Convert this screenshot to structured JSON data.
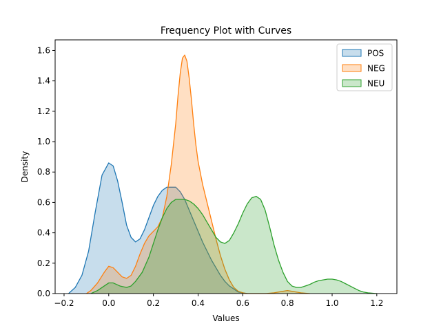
{
  "chart_data": {
    "type": "area",
    "title": "Frequency Plot with Curves",
    "xlabel": "Values",
    "ylabel": "Density",
    "xlim": [
      -0.24,
      1.29
    ],
    "ylim": [
      0,
      1.67
    ],
    "xticks": [
      -0.2,
      0.0,
      0.2,
      0.4,
      0.6,
      0.8,
      1.0,
      1.2
    ],
    "xtick_labels": [
      "−0.2",
      "0.0",
      "0.2",
      "0.4",
      "0.6",
      "0.8",
      "1.0",
      "1.2"
    ],
    "yticks": [
      0.0,
      0.2,
      0.4,
      0.6,
      0.8,
      1.0,
      1.2,
      1.4,
      1.6
    ],
    "ytick_labels": [
      "0.0",
      "0.2",
      "0.4",
      "0.6",
      "0.8",
      "1.0",
      "1.2",
      "1.4",
      "1.6"
    ],
    "grid": false,
    "legend_position": "top-right",
    "series": [
      {
        "name": "POS",
        "color": "#1f77b4",
        "x": [
          -0.18,
          -0.15,
          -0.12,
          -0.09,
          -0.06,
          -0.03,
          0.0,
          0.02,
          0.04,
          0.06,
          0.08,
          0.1,
          0.12,
          0.14,
          0.16,
          0.18,
          0.2,
          0.22,
          0.24,
          0.26,
          0.28,
          0.3,
          0.32,
          0.34,
          0.36,
          0.38,
          0.4,
          0.42,
          0.44,
          0.46,
          0.48,
          0.5,
          0.52,
          0.54,
          0.56,
          0.58,
          0.6,
          0.62
        ],
        "y": [
          0.0,
          0.04,
          0.12,
          0.28,
          0.54,
          0.78,
          0.86,
          0.84,
          0.74,
          0.6,
          0.45,
          0.37,
          0.34,
          0.36,
          0.42,
          0.5,
          0.58,
          0.64,
          0.68,
          0.7,
          0.7,
          0.7,
          0.67,
          0.62,
          0.55,
          0.48,
          0.41,
          0.34,
          0.28,
          0.22,
          0.17,
          0.12,
          0.08,
          0.05,
          0.03,
          0.01,
          0.005,
          0.0
        ]
      },
      {
        "name": "NEG",
        "color": "#ff7f0e",
        "x": [
          -0.1,
          -0.08,
          -0.05,
          -0.02,
          0.0,
          0.02,
          0.04,
          0.06,
          0.08,
          0.1,
          0.12,
          0.14,
          0.16,
          0.18,
          0.2,
          0.22,
          0.24,
          0.26,
          0.28,
          0.3,
          0.31,
          0.32,
          0.33,
          0.34,
          0.35,
          0.36,
          0.37,
          0.38,
          0.39,
          0.4,
          0.42,
          0.44,
          0.46,
          0.48,
          0.5,
          0.52,
          0.54,
          0.56,
          0.58,
          0.6,
          0.62,
          0.66,
          0.7,
          0.74,
          0.78,
          0.8,
          0.82,
          0.86,
          0.9
        ],
        "y": [
          0.0,
          0.02,
          0.07,
          0.14,
          0.18,
          0.17,
          0.14,
          0.11,
          0.1,
          0.12,
          0.18,
          0.26,
          0.33,
          0.38,
          0.41,
          0.44,
          0.5,
          0.64,
          0.85,
          1.12,
          1.3,
          1.45,
          1.55,
          1.57,
          1.53,
          1.42,
          1.28,
          1.12,
          0.98,
          0.87,
          0.72,
          0.6,
          0.48,
          0.36,
          0.25,
          0.16,
          0.09,
          0.04,
          0.015,
          0.005,
          0.0,
          0.0,
          0.0,
          0.005,
          0.015,
          0.02,
          0.015,
          0.005,
          0.0
        ]
      },
      {
        "name": "NEU",
        "color": "#2ca02c",
        "x": [
          -0.08,
          -0.05,
          -0.02,
          0.0,
          0.02,
          0.05,
          0.08,
          0.1,
          0.12,
          0.15,
          0.18,
          0.2,
          0.22,
          0.24,
          0.26,
          0.28,
          0.3,
          0.32,
          0.34,
          0.36,
          0.38,
          0.4,
          0.42,
          0.44,
          0.46,
          0.48,
          0.5,
          0.52,
          0.54,
          0.56,
          0.58,
          0.6,
          0.62,
          0.64,
          0.66,
          0.68,
          0.7,
          0.72,
          0.74,
          0.76,
          0.78,
          0.8,
          0.82,
          0.84,
          0.86,
          0.88,
          0.9,
          0.92,
          0.94,
          0.96,
          0.98,
          1.0,
          1.02,
          1.04,
          1.06,
          1.08,
          1.1,
          1.12,
          1.14,
          1.16,
          1.2
        ],
        "y": [
          0.0,
          0.02,
          0.05,
          0.07,
          0.07,
          0.05,
          0.04,
          0.05,
          0.08,
          0.14,
          0.24,
          0.33,
          0.42,
          0.5,
          0.56,
          0.6,
          0.62,
          0.62,
          0.62,
          0.61,
          0.59,
          0.56,
          0.52,
          0.47,
          0.42,
          0.37,
          0.34,
          0.33,
          0.35,
          0.4,
          0.46,
          0.53,
          0.59,
          0.63,
          0.64,
          0.62,
          0.55,
          0.44,
          0.32,
          0.22,
          0.14,
          0.08,
          0.05,
          0.04,
          0.04,
          0.05,
          0.06,
          0.075,
          0.085,
          0.09,
          0.095,
          0.095,
          0.09,
          0.08,
          0.065,
          0.05,
          0.035,
          0.02,
          0.01,
          0.005,
          0.0
        ]
      }
    ]
  }
}
